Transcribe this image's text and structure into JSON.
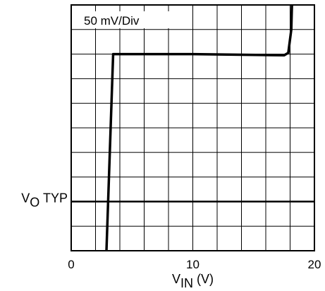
{
  "chart_data": {
    "type": "line",
    "x_axis": {
      "ticks": [
        0,
        10,
        20
      ],
      "tick_labels": [
        "0",
        "10",
        "20"
      ],
      "label_main": "V",
      "label_sub": "IN",
      "label_unit": " (V)",
      "range": [
        0,
        20
      ],
      "minor_step": 2
    },
    "y_axis": {
      "marker_label_main": "V",
      "marker_label_sub": "O",
      "marker_label_suffix": " TYP",
      "divisions": 10,
      "marker_division": 2
    },
    "annotation": "50 mV/Div",
    "grid": true,
    "series": [
      {
        "points": [
          [
            2.9,
            0.0
          ],
          [
            3.45,
            8.0
          ],
          [
            10,
            8.0
          ],
          [
            17.5,
            7.95
          ],
          [
            17.85,
            8.05
          ],
          [
            18.1,
            9.0
          ],
          [
            18.15,
            10.0
          ]
        ]
      }
    ]
  }
}
